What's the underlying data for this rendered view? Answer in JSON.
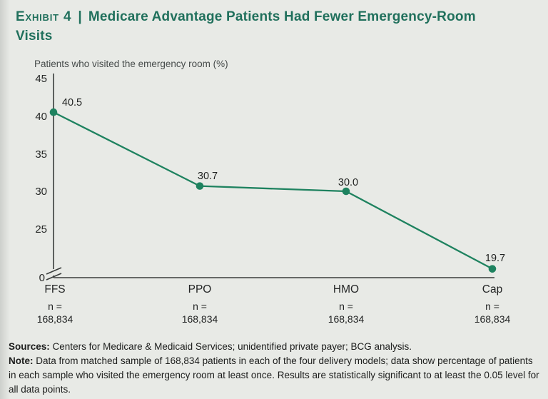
{
  "page": {
    "background_color": "#e8eae6",
    "accent_color": "#20705c"
  },
  "header": {
    "exhibit_label": "Exhibit 4",
    "separator": "|",
    "title": "Medicare Advantage Patients Had Fewer Emergency-Room Visits"
  },
  "chart_data": {
    "type": "line",
    "title": "Medicare Advantage Patients Had Fewer Emergency-Room Visits",
    "axis_title": "Patients who visited the emergency room (%)",
    "categories": [
      "FFS",
      "PPO",
      "HMO",
      "Cap"
    ],
    "values": [
      40.5,
      30.7,
      30.0,
      19.7
    ],
    "value_labels": [
      "40.5",
      "30.7",
      "30.0",
      "19.7"
    ],
    "samples": [
      {
        "prefix": "n =",
        "value": "168,834"
      },
      {
        "prefix": "n =",
        "value": "168,834"
      },
      {
        "prefix": "n =",
        "value": "168,834"
      },
      {
        "prefix": "n =",
        "value": "168,834"
      }
    ],
    "y_ticks": [
      "45",
      "40",
      "35",
      "30",
      "25"
    ],
    "y_zero_label": "0",
    "axis_break": true,
    "ylim": [
      0,
      45
    ],
    "grid": false,
    "legend": "none",
    "line_color": "#1e825f",
    "marker": "circle"
  },
  "footer": {
    "sources_label": "Sources:",
    "sources_text": "Centers for Medicare & Medicaid Services; unidentified private payer; BCG analysis.",
    "note_label": "Note:",
    "note_text": "Data from matched sample of 168,834 patients in each of the four delivery models; data show percentage of patients in each sample who visited the emergency room at least once. Results are statistically significant to at least the 0.05 level for all data points."
  }
}
